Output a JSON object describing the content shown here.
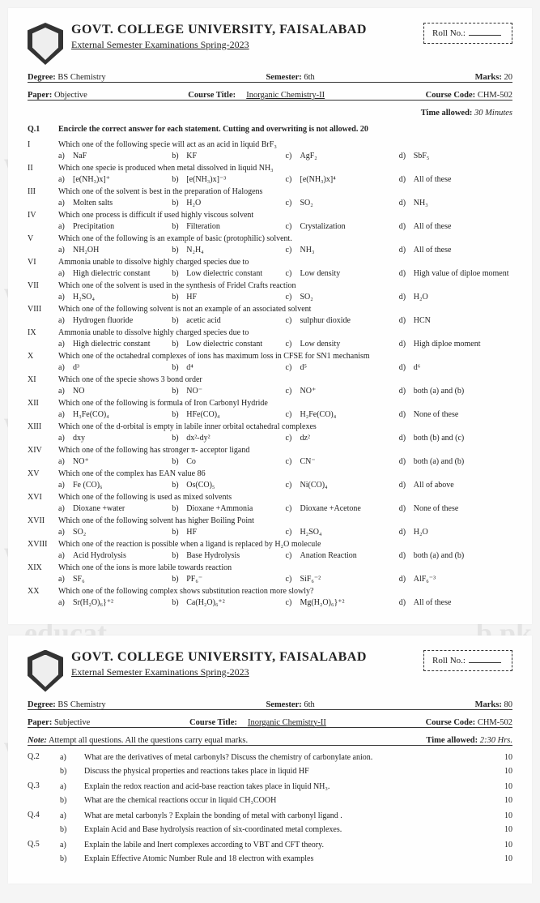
{
  "watermark_left": "ww",
  "watermark_right": "b.pk",
  "watermark_center": "educat",
  "paper1": {
    "univ": "GOVT. COLLEGE UNIVERSITY, FAISALABAD",
    "exam": "External Semester Examinations Spring-2023",
    "rollno_label": "Roll No.:",
    "degree_label": "Degree:",
    "degree": "BS Chemistry",
    "semester_label": "Semester:",
    "semester": "6th",
    "marks_label": "Marks:",
    "marks": "20",
    "paper_label": "Paper:",
    "paper": "Objective",
    "course_title_label": "Course Title:",
    "course_title": "Inorganic Chemistry-II",
    "course_code_label": "Course Code:",
    "course_code": "CHM-502",
    "time_label": "Time allowed:",
    "time": "30 Minutes",
    "q1_label": "Q.1",
    "q1_heading": "Encircle the correct answer for each statement. Cutting and overwriting is not allowed. 20",
    "items": [
      {
        "n": "I",
        "q": "Which one of the following specie will act as an acid in liquid BrF₃",
        "a": "NaF",
        "b": "KF",
        "c": "AgF₂",
        "d": "SbF₅"
      },
      {
        "n": "II",
        "q": "Which one specie is produced when metal dissolved in liquid NH₃",
        "a": "[e(NH₃)x]⁺",
        "b": "[e(NH₃)x]⁻³",
        "c": "[e(NH₃)x]⁴",
        "d": "All of these"
      },
      {
        "n": "III",
        "q": "Which one of the solvent is best in the preparation of Halogens",
        "a": "Molten salts",
        "b": "H₂O",
        "c": "SO₂",
        "d": "NH₃"
      },
      {
        "n": "IV",
        "q": "Which one process is difficult if used highly viscous solvent",
        "a": "Precipitation",
        "b": "Filteration",
        "c": "Crystalization",
        "d": "All of these"
      },
      {
        "n": "V",
        "q": "Which one of the following is an example of basic (protophilic) solvent.",
        "a": "NH₂OH",
        "b": "N₂H₄",
        "c": "NH₃",
        "d": "All of these"
      },
      {
        "n": "VI",
        "q": "Ammonia unable to dissolve highly charged species due to",
        "a": "High dielectric constant",
        "b": "Low dielectric constant",
        "c": "Low density",
        "d": "High value of diploe moment"
      },
      {
        "n": "VII",
        "q": "Which one of the solvent is used in the synthesis of Fridel Crafts reaction",
        "a": "H₂SO₄",
        "b": "HF",
        "c": "SO₂",
        "d": "H₂O"
      },
      {
        "n": "VIII",
        "q": "Which one of the following solvent is not an example of an associated solvent",
        "a": "Hydrogen fluoride",
        "b": "acetic acid",
        "c": "sulphur dioxide",
        "d": "HCN"
      },
      {
        "n": "IX",
        "q": "Ammonia unable to dissolve highly charged species due to",
        "a": "High dielectric constant",
        "b": "Low dielectric constant",
        "c": "Low density",
        "d": "High diploe moment"
      },
      {
        "n": "X",
        "q": "Which one of the octahedral complexes of ions has maximum loss in CFSE for SN1 mechanism",
        "a": "d³",
        "b": "d⁴",
        "c": "d⁵",
        "d": "d⁶"
      },
      {
        "n": "XI",
        "q": "Which one of the specie shows 3 bond order",
        "a": "NO",
        "b": "NO⁻",
        "c": "NO⁺",
        "d": "both (a) and (b)"
      },
      {
        "n": "XII",
        "q": "Which one of the following is formula of Iron Carbonyl Hydride",
        "a": "H₃Fe(CO)₄",
        "b": "HFe(CO)₄",
        "c": "H₂Fe(CO)₄",
        "d": "None of these"
      },
      {
        "n": "XIII",
        "q": "Which one of the d-orbital is empty in labile inner orbital octahedral complexes",
        "a": "dxy",
        "b": "dx²-dy²",
        "c": "dz²",
        "d": "both (b) and (c)"
      },
      {
        "n": "XIV",
        "q": "Which one of the following has stronger π- acceptor ligand",
        "a": "NO⁺",
        "b": "Co",
        "c": "CN⁻",
        "d": "both (a) and (b)"
      },
      {
        "n": "XV",
        "q": "Which one of the complex has EAN value 86",
        "a": "Fe (CO)₆",
        "b": "Os(CO)₅",
        "c": "Ni(CO)₄",
        "d": "All of above"
      },
      {
        "n": "XVI",
        "q": "Which one of the following is used as mixed solvents",
        "a": "Dioxane +water",
        "b": "Dioxane +Ammonia",
        "c": "Dioxane +Acetone",
        "d": "None of these"
      },
      {
        "n": "XVII",
        "q": "Which one of the following solvent has higher Boiling Point",
        "a": "SO₂",
        "b": "HF",
        "c": "H₂SO₄",
        "d": "H₂O"
      },
      {
        "n": "XVIII",
        "q": "Which one of the reaction is possible when a ligand is replaced by H₂O molecule",
        "a": "Acid Hydrolysis",
        "b": "Base Hydrolysis",
        "c": "Anation Reaction",
        "d": "both (a) and (b)"
      },
      {
        "n": "XIX",
        "q": "Which one of the ions is more labile towards reaction",
        "a": "SF₆",
        "b": "PF₆⁻",
        "c": "SiF₆⁻²",
        "d": "AlF₆⁻³"
      },
      {
        "n": "XX",
        "q": "Which one of the following complex shows substitution reaction more slowly?",
        "a": "Sr(H₂O)₆}⁺²",
        "b": "Ca(H₂O)₆⁺²",
        "c": "Mg(H₂O)₆}⁺²",
        "d": "All of these"
      }
    ]
  },
  "paper2": {
    "univ": "GOVT. COLLEGE UNIVERSITY, FAISALABAD",
    "exam": "External Semester Examinations Spring-2023",
    "rollno_label": "Roll No.:",
    "degree_label": "Degree:",
    "degree": "BS Chemistry",
    "semester_label": "Semester:",
    "semester": "6th",
    "marks_label": "Marks:",
    "marks": "80",
    "paper_label": "Paper:",
    "paper": "Subjective",
    "course_title_label": "Course Title:",
    "course_title": "Inorganic Chemistry-II",
    "course_code_label": "Course Code:",
    "course_code": "CHM-502",
    "time_label": "Time allowed:",
    "time": "2:30 Hrs.",
    "note_label": "Note:",
    "note": "Attempt all questions. All the questions carry equal marks.",
    "questions": [
      {
        "n": "Q.2",
        "parts": [
          {
            "l": "a)",
            "t": "What are the derivatives of metal carbonyls? Discuss the chemistry of carbonylate anion.",
            "m": "10"
          },
          {
            "l": "b)",
            "t": "Discuss the physical properties and reactions takes place in liquid HF",
            "m": "10"
          }
        ]
      },
      {
        "n": "Q.3",
        "parts": [
          {
            "l": "a)",
            "t": "Explain the redox reaction and acid-base reaction takes place in liquid NH₃.",
            "m": "10"
          },
          {
            "l": "b)",
            "t": "What are the chemical reactions occur in liquid CH₃COOH",
            "m": "10"
          }
        ]
      },
      {
        "n": "Q.4",
        "parts": [
          {
            "l": "a)",
            "t": "What are metal carbonyls ? Explain the bonding of metal with carbonyl ligand .",
            "m": "10"
          },
          {
            "l": "b)",
            "t": "Explain Acid and Base hydrolysis reaction of six-coordinated metal complexes.",
            "m": "10"
          }
        ]
      },
      {
        "n": "Q.5",
        "parts": [
          {
            "l": "a)",
            "t": "Explain the labile and Inert complexes according to VBT and CFT theory.",
            "m": "10"
          },
          {
            "l": "b)",
            "t": "Explain Effective Atomic Number Rule and 18 electron with examples",
            "m": "10"
          }
        ]
      }
    ]
  }
}
